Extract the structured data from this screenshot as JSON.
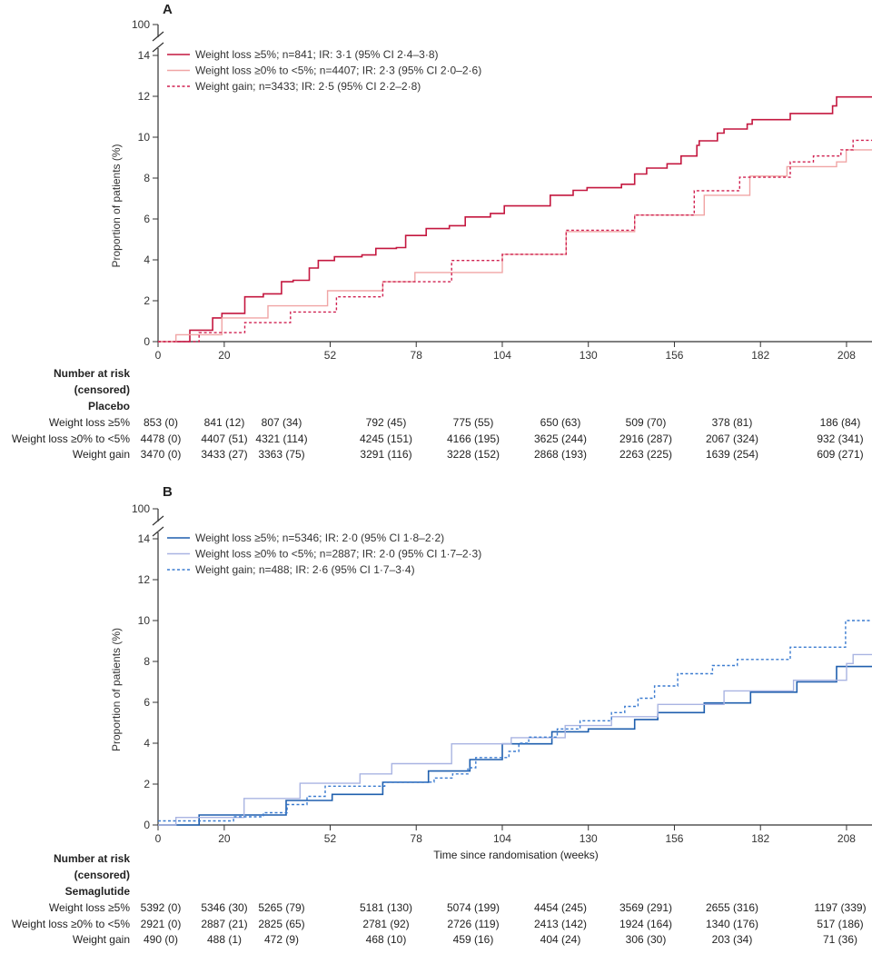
{
  "chart_data": [
    {
      "type": "line",
      "panel": "A",
      "ylabel": "Proportion of patients (%)",
      "xlabel": "",
      "yticks": [
        0,
        2,
        4,
        6,
        8,
        10,
        12,
        14,
        100
      ],
      "xticks": [
        0,
        20,
        52,
        78,
        104,
        130,
        156,
        182,
        208
      ],
      "ylim": [
        0,
        14
      ],
      "xlim": [
        0,
        216
      ],
      "axis_break": true,
      "grid": false,
      "legend_position": "top-left",
      "series": [
        {
          "name": "Weight loss ≥5%; n=841; IR: 3·1 (95% CI 2·4–3·8)",
          "color": "#c4173f",
          "dash": false,
          "width": 1.6,
          "points": [
            [
              0,
              0
            ],
            [
              9.6,
              0.56
            ],
            [
              16.5,
              1.16
            ],
            [
              19.3,
              1.38
            ],
            [
              24.2,
              1.38
            ],
            [
              26.2,
              2.19
            ],
            [
              31.8,
              2.34
            ],
            [
              37.3,
              2.93
            ],
            [
              40.8,
              3.0
            ],
            [
              45.7,
              3.6
            ],
            [
              48.4,
              3.97
            ],
            [
              53.3,
              4.15
            ],
            [
              61.6,
              4.24
            ],
            [
              65.8,
              4.56
            ],
            [
              72,
              4.6
            ],
            [
              74.8,
              5.19
            ],
            [
              81,
              5.53
            ],
            [
              88,
              5.67
            ],
            [
              92.8,
              6.1
            ],
            [
              100.4,
              6.27
            ],
            [
              104.6,
              6.64
            ],
            [
              115,
              6.64
            ],
            [
              118.5,
              7.16
            ],
            [
              125.4,
              7.4
            ],
            [
              129.6,
              7.53
            ],
            [
              140,
              7.7
            ],
            [
              144,
              8.2
            ],
            [
              147.6,
              8.49
            ],
            [
              153.8,
              8.7
            ],
            [
              158,
              9.08
            ],
            [
              162.8,
              9.6
            ],
            [
              163.5,
              9.82
            ],
            [
              169,
              10.2
            ],
            [
              171,
              10.4
            ],
            [
              178,
              10.64
            ],
            [
              179.5,
              10.86
            ],
            [
              191,
              11.16
            ],
            [
              203.8,
              11.53
            ],
            [
              205,
              11.97
            ],
            [
              216,
              11.97
            ]
          ]
        },
        {
          "name": "Weight loss ≥0% to <5%; n=4407; IR: 2·3 (95% CI 2·0–2·6)",
          "color": "#f0a5a5",
          "dash": false,
          "width": 1.4,
          "points": [
            [
              0,
              0
            ],
            [
              5.4,
              0.34
            ],
            [
              19.3,
              1.16
            ],
            [
              33.2,
              1.75
            ],
            [
              51.2,
              2.49
            ],
            [
              67.9,
              2.93
            ],
            [
              77.6,
              3.38
            ],
            [
              104,
              4.27
            ],
            [
              123.3,
              5.38
            ],
            [
              144,
              6.19
            ],
            [
              165,
              7.16
            ],
            [
              178.8,
              8.1
            ],
            [
              190,
              8.56
            ],
            [
              205,
              8.79
            ],
            [
              207.9,
              9.38
            ],
            [
              216,
              9.42
            ]
          ]
        },
        {
          "name": "Weight gain; n=3433; IR: 2·5 (95% CI 2·2–2·8)",
          "color": "#d02050",
          "dash": true,
          "width": 1.4,
          "points": [
            [
              0,
              0
            ],
            [
              12.4,
              0.44
            ],
            [
              26.2,
              0.93
            ],
            [
              40,
              1.45
            ],
            [
              53.9,
              2.19
            ],
            [
              67.9,
              2.93
            ],
            [
              88.7,
              3.97
            ],
            [
              104,
              4.27
            ],
            [
              123.3,
              5.45
            ],
            [
              144,
              6.19
            ],
            [
              162,
              7.38
            ],
            [
              175.7,
              8.04
            ],
            [
              191,
              8.79
            ],
            [
              198,
              9.08
            ],
            [
              206.3,
              9.38
            ],
            [
              210,
              9.85
            ],
            [
              216,
              9.85
            ]
          ]
        }
      ]
    },
    {
      "type": "line",
      "panel": "B",
      "ylabel": "Proportion of patients (%)",
      "xlabel": "Time since randomisation (weeks)",
      "yticks": [
        0,
        2,
        4,
        6,
        8,
        10,
        12,
        14,
        100
      ],
      "xticks": [
        0,
        20,
        52,
        78,
        104,
        130,
        156,
        182,
        208
      ],
      "ylim": [
        0,
        14
      ],
      "xlim": [
        0,
        216
      ],
      "axis_break": true,
      "grid": false,
      "legend_position": "top-left",
      "series": [
        {
          "name": "Weight loss ≥5%; n=5346; IR: 2·0 (95% CI 1·8–2·2)",
          "color": "#1f5fae",
          "dash": false,
          "width": 1.6,
          "points": [
            [
              0,
              0
            ],
            [
              12.4,
              0.49
            ],
            [
              38.7,
              1.2
            ],
            [
              52.6,
              1.5
            ],
            [
              67.9,
              2.09
            ],
            [
              81.7,
              2.64
            ],
            [
              94.2,
              3.2
            ],
            [
              104,
              3.97
            ],
            [
              119,
              4.56
            ],
            [
              130,
              4.7
            ],
            [
              144,
              5.16
            ],
            [
              151,
              5.5
            ],
            [
              165,
              5.97
            ],
            [
              179,
              6.5
            ],
            [
              193,
              7.0
            ],
            [
              205,
              7.75
            ],
            [
              216,
              7.93
            ]
          ]
        },
        {
          "name": "Weight loss ≥0% to <5%; n=2887; IR: 2·0 (95% CI 1·7–2·3)",
          "color": "#a9b4e2",
          "dash": false,
          "width": 1.4,
          "points": [
            [
              0,
              0
            ],
            [
              5.4,
              0.37
            ],
            [
              26,
              1.3
            ],
            [
              42.9,
              2.04
            ],
            [
              61,
              2.5
            ],
            [
              70.6,
              3.0
            ],
            [
              88.7,
              3.97
            ],
            [
              106.7,
              4.27
            ],
            [
              123,
              4.86
            ],
            [
              137,
              5.3
            ],
            [
              151,
              5.9
            ],
            [
              171,
              6.56
            ],
            [
              192,
              7.08
            ],
            [
              208,
              7.9
            ],
            [
              210,
              8.34
            ],
            [
              216,
              8.34
            ]
          ]
        },
        {
          "name": "Weight gain; n=488; IR: 2·6 (95% CI 1·7–3·4)",
          "color": "#3a7bd0",
          "dash": true,
          "width": 1.4,
          "points": [
            [
              0,
              0.2
            ],
            [
              22.8,
              0.4
            ],
            [
              31.8,
              0.6
            ],
            [
              39,
              1.0
            ],
            [
              45,
              1.4
            ],
            [
              50.5,
              1.9
            ],
            [
              68.5,
              2.1
            ],
            [
              83.4,
              2.3
            ],
            [
              89,
              2.5
            ],
            [
              93.6,
              2.8
            ],
            [
              96,
              3.3
            ],
            [
              106,
              3.6
            ],
            [
              109,
              4.0
            ],
            [
              112,
              4.3
            ],
            [
              120.6,
              4.7
            ],
            [
              127.5,
              5.1
            ],
            [
              137,
              5.5
            ],
            [
              141,
              5.8
            ],
            [
              145,
              6.2
            ],
            [
              150,
              6.8
            ],
            [
              157,
              7.4
            ],
            [
              167.5,
              7.8
            ],
            [
              175,
              8.1
            ],
            [
              191,
              8.7
            ],
            [
              207.7,
              10.0
            ],
            [
              216,
              10.0
            ]
          ]
        }
      ]
    }
  ],
  "risk_tables": [
    {
      "header": [
        "Number at risk",
        "(censored)"
      ],
      "group": "Placebo",
      "rows": [
        {
          "label": "Weight loss ≥5%",
          "values": [
            "853 (0)",
            "841 (12)",
            "807 (34)",
            "792 (45)",
            "775 (55)",
            "650 (63)",
            "509 (70)",
            "378 (81)",
            "186 (84)"
          ]
        },
        {
          "label": "Weight loss ≥0% to <5%",
          "values": [
            "4478 (0)",
            "4407 (51)",
            "4321 (114)",
            "4245 (151)",
            "4166 (195)",
            "3625 (244)",
            "2916 (287)",
            "2067 (324)",
            "932 (341)"
          ]
        },
        {
          "label": "Weight gain",
          "values": [
            "3470 (0)",
            "3433 (27)",
            "3363 (75)",
            "3291 (116)",
            "3228 (152)",
            "2868 (193)",
            "2263 (225)",
            "1639 (254)",
            "609 (271)"
          ]
        }
      ]
    },
    {
      "header": [
        "Number at risk",
        "(censored)"
      ],
      "group": "Semaglutide",
      "rows": [
        {
          "label": "Weight loss ≥5%",
          "values": [
            "5392 (0)",
            "5346 (30)",
            "5265 (79)",
            "5181 (130)",
            "5074 (199)",
            "4454 (245)",
            "3569 (291)",
            "2655 (316)",
            "1197 (339)"
          ]
        },
        {
          "label": "Weight loss ≥0% to <5%",
          "values": [
            "2921 (0)",
            "2887 (21)",
            "2825 (65)",
            "2781 (92)",
            "2726 (119)",
            "2413 (142)",
            "1924 (164)",
            "1340 (176)",
            "517 (186)"
          ]
        },
        {
          "label": "Weight gain",
          "values": [
            "490 (0)",
            "488 (1)",
            "472 (9)",
            "468 (10)",
            "459 (16)",
            "404 (24)",
            "306 (30)",
            "203 (34)",
            "71 (36)"
          ]
        }
      ]
    }
  ]
}
